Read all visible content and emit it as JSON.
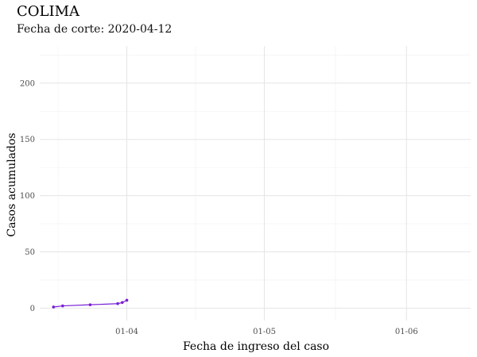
{
  "header": {
    "title": "COLIMA",
    "subtitle": "Fecha de corte: 2020-04-12"
  },
  "chart_data": {
    "type": "line",
    "title": "COLIMA",
    "subtitle": "Fecha de corte: 2020-04-12",
    "xlabel": "Fecha de ingreso del caso",
    "ylabel": "Casos acumulados",
    "x_type": "date",
    "xlim": [
      "2020-03-13",
      "2020-06-15"
    ],
    "ylim": [
      -11,
      233
    ],
    "x_ticks": [
      {
        "date": "2020-04-01",
        "label": "01-04"
      },
      {
        "date": "2020-05-01",
        "label": "01-05"
      },
      {
        "date": "2020-06-01",
        "label": "01-06"
      }
    ],
    "y_ticks": [
      0,
      50,
      100,
      150,
      200
    ],
    "grid": true,
    "series": [
      {
        "color": "#7a1fd6",
        "points": [
          {
            "x": "2020-03-16",
            "y": 1
          },
          {
            "x": "2020-03-18",
            "y": 2
          },
          {
            "x": "2020-03-24",
            "y": 3
          },
          {
            "x": "2020-03-30",
            "y": 4
          },
          {
            "x": "2020-03-31",
            "y": 5
          },
          {
            "x": "2020-04-01",
            "y": 7
          }
        ]
      }
    ]
  }
}
